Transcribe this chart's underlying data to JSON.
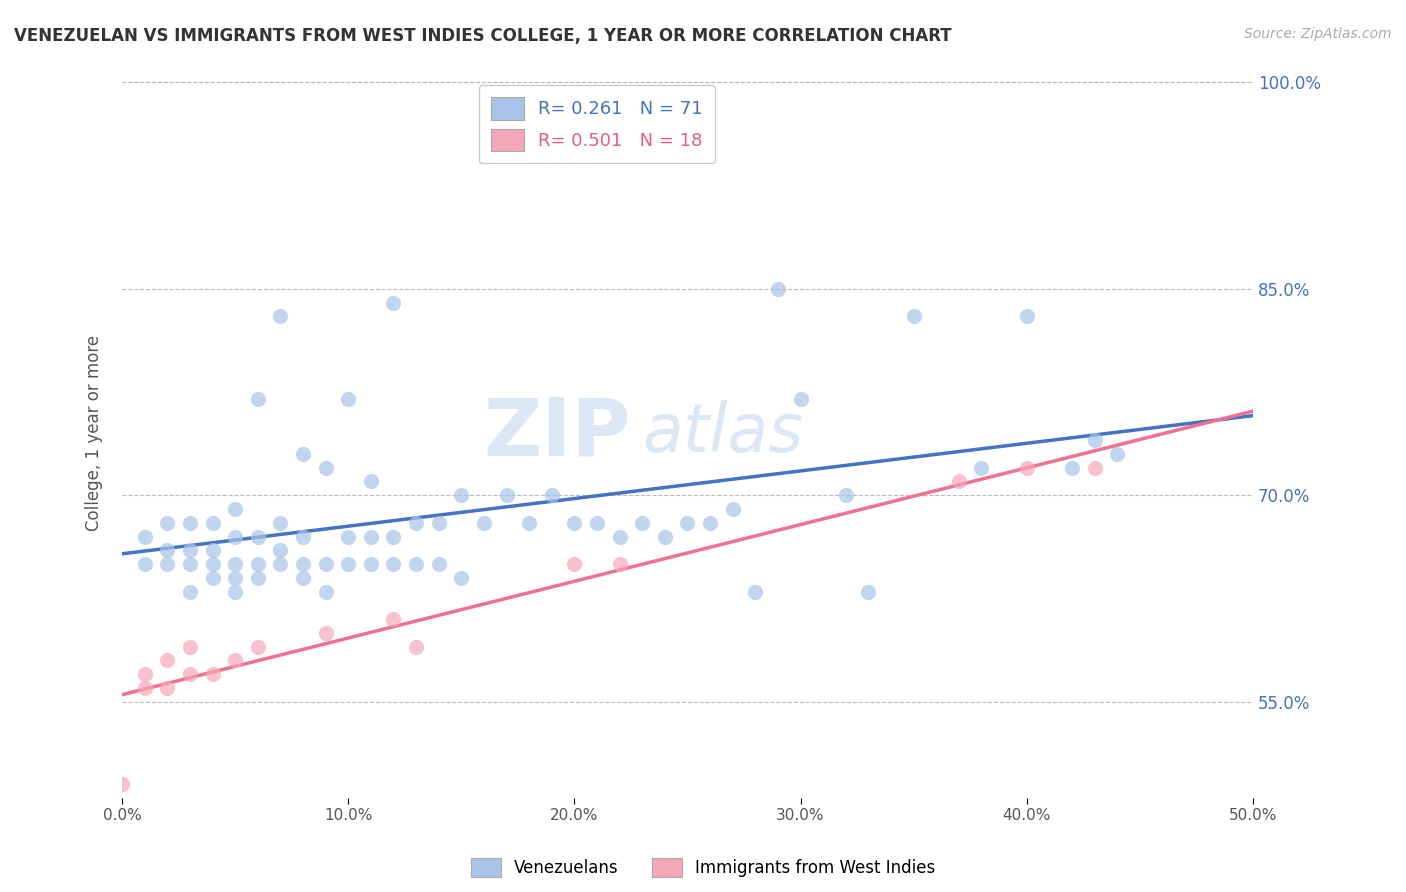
{
  "title": "VENEZUELAN VS IMMIGRANTS FROM WEST INDIES COLLEGE, 1 YEAR OR MORE CORRELATION CHART",
  "source_text": "Source: ZipAtlas.com",
  "ylabel": "College, 1 year or more",
  "xlim": [
    0.0,
    0.5
  ],
  "ylim": [
    0.48,
    1.01
  ],
  "xtick_labels": [
    "0.0%",
    "10.0%",
    "20.0%",
    "30.0%",
    "40.0%",
    "50.0%"
  ],
  "xtick_vals": [
    0.0,
    0.1,
    0.2,
    0.3,
    0.4,
    0.5
  ],
  "ytick_vals_grid": [
    0.55,
    0.7,
    0.85,
    1.0
  ],
  "ytick_labels_right": [
    "55.0%",
    "70.0%",
    "85.0%",
    "100.0%"
  ],
  "ytick_vals_right": [
    0.55,
    0.7,
    0.85,
    1.0
  ],
  "blue_R": 0.261,
  "blue_N": 71,
  "pink_R": 0.501,
  "pink_N": 18,
  "blue_color": "#a8c4e8",
  "pink_color": "#f4a7b9",
  "blue_line_color": "#4472c4",
  "pink_line_color": "#f07090",
  "watermark_zip": "ZIP",
  "watermark_atlas": "atlas",
  "legend_label_blue": "Venezuelans",
  "legend_label_pink": "Immigrants from West Indies",
  "blue_x": [
    0.01,
    0.01,
    0.02,
    0.02,
    0.02,
    0.03,
    0.03,
    0.03,
    0.03,
    0.04,
    0.04,
    0.04,
    0.04,
    0.05,
    0.05,
    0.05,
    0.05,
    0.05,
    0.06,
    0.06,
    0.06,
    0.06,
    0.07,
    0.07,
    0.07,
    0.07,
    0.08,
    0.08,
    0.08,
    0.08,
    0.09,
    0.09,
    0.09,
    0.1,
    0.1,
    0.1,
    0.11,
    0.11,
    0.11,
    0.12,
    0.12,
    0.12,
    0.13,
    0.13,
    0.14,
    0.14,
    0.15,
    0.15,
    0.16,
    0.17,
    0.18,
    0.19,
    0.2,
    0.21,
    0.22,
    0.23,
    0.24,
    0.25,
    0.26,
    0.27,
    0.28,
    0.29,
    0.3,
    0.32,
    0.33,
    0.35,
    0.38,
    0.4,
    0.42,
    0.43,
    0.44
  ],
  "blue_y": [
    0.65,
    0.67,
    0.65,
    0.66,
    0.68,
    0.63,
    0.65,
    0.66,
    0.68,
    0.64,
    0.65,
    0.66,
    0.68,
    0.63,
    0.64,
    0.65,
    0.67,
    0.69,
    0.64,
    0.65,
    0.67,
    0.77,
    0.65,
    0.66,
    0.68,
    0.83,
    0.64,
    0.65,
    0.67,
    0.73,
    0.63,
    0.65,
    0.72,
    0.65,
    0.67,
    0.77,
    0.65,
    0.67,
    0.71,
    0.65,
    0.67,
    0.84,
    0.65,
    0.68,
    0.65,
    0.68,
    0.64,
    0.7,
    0.68,
    0.7,
    0.68,
    0.7,
    0.68,
    0.68,
    0.67,
    0.68,
    0.67,
    0.68,
    0.68,
    0.69,
    0.63,
    0.85,
    0.77,
    0.7,
    0.63,
    0.83,
    0.72,
    0.83,
    0.72,
    0.74,
    0.73
  ],
  "pink_x": [
    0.0,
    0.01,
    0.01,
    0.02,
    0.02,
    0.03,
    0.03,
    0.04,
    0.05,
    0.06,
    0.09,
    0.12,
    0.13,
    0.2,
    0.22,
    0.37,
    0.4,
    0.43
  ],
  "pink_y": [
    0.49,
    0.56,
    0.57,
    0.56,
    0.58,
    0.57,
    0.59,
    0.57,
    0.58,
    0.59,
    0.6,
    0.61,
    0.59,
    0.65,
    0.65,
    0.71,
    0.72,
    0.72
  ]
}
